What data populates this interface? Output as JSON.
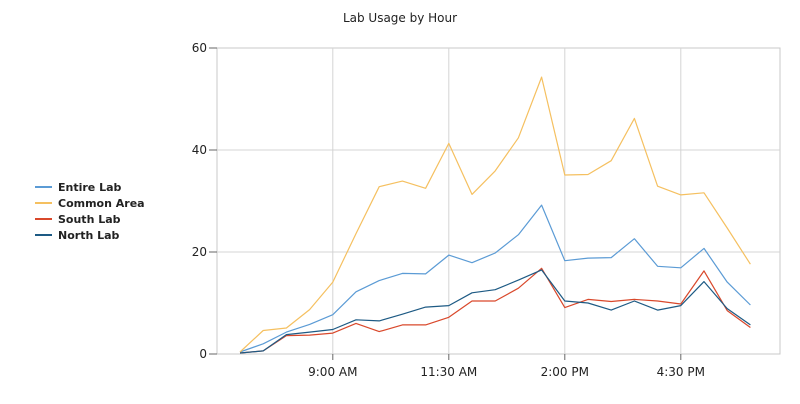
{
  "chart_data": {
    "type": "line",
    "title": "Lab Usage by Hour",
    "xlabel": "",
    "ylabel": "",
    "ylim": [
      0,
      60
    ],
    "y_ticks": [
      0,
      20,
      40,
      60
    ],
    "x_ticks": [
      "9:00 AM",
      "11:30 AM",
      "2:00 PM",
      "4:30 PM"
    ],
    "x": [
      "7:00 AM",
      "7:30 AM",
      "8:00 AM",
      "8:30 AM",
      "9:00 AM",
      "9:30 AM",
      "10:00 AM",
      "10:30 AM",
      "11:00 AM",
      "11:30 AM",
      "12:00 PM",
      "12:30 PM",
      "1:00 PM",
      "1:30 PM",
      "2:00 PM",
      "2:30 PM",
      "3:00 PM",
      "3:30 PM",
      "4:00 PM",
      "4:30 PM",
      "5:00 PM",
      "5:30 PM",
      "6:00 PM"
    ],
    "grid": true,
    "legend_position": "left",
    "series": [
      {
        "name": "Entire Lab",
        "color": "#5b9bd5",
        "values": [
          0.4,
          2.0,
          4.3,
          5.8,
          7.7,
          12.2,
          14.4,
          15.8,
          15.7,
          19.4,
          17.9,
          19.8,
          23.4,
          29.2,
          18.3,
          18.8,
          18.9,
          22.6,
          17.2,
          16.9,
          20.7,
          14.1,
          9.6
        ]
      },
      {
        "name": "Common Area",
        "color": "#f5c060",
        "values": [
          0.4,
          4.6,
          5.1,
          8.7,
          14.1,
          23.6,
          32.8,
          33.9,
          32.5,
          41.3,
          31.3,
          35.9,
          42.4,
          54.3,
          35.1,
          35.2,
          37.9,
          46.2,
          32.9,
          31.2,
          31.6,
          24.7,
          17.6
        ]
      },
      {
        "name": "South Lab",
        "color": "#d9482b",
        "values": [
          0.2,
          0.6,
          3.6,
          3.7,
          4.1,
          6.0,
          4.4,
          5.7,
          5.7,
          7.2,
          10.4,
          10.4,
          12.9,
          16.8,
          9.1,
          10.7,
          10.3,
          10.7,
          10.4,
          9.8,
          16.3,
          8.5,
          5.2
        ]
      },
      {
        "name": "North Lab",
        "color": "#1d5a84",
        "values": [
          0.2,
          0.6,
          3.8,
          4.3,
          4.8,
          6.7,
          6.5,
          7.8,
          9.2,
          9.5,
          12.0,
          12.6,
          14.5,
          16.5,
          10.4,
          10.0,
          8.6,
          10.4,
          8.6,
          9.5,
          14.2,
          8.9,
          5.7
        ]
      }
    ]
  }
}
